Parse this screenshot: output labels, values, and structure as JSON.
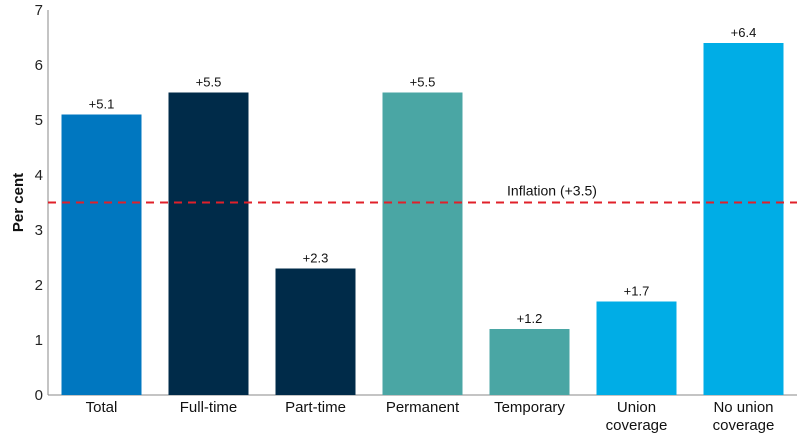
{
  "chart_data": {
    "type": "bar",
    "ylabel": "Per cent",
    "xlabel": "",
    "title": "",
    "ylim": [
      0,
      7
    ],
    "yticks": [
      "0",
      "1",
      "2",
      "3",
      "4",
      "5",
      "6",
      "7"
    ],
    "grid": false,
    "categories": [
      [
        "Total"
      ],
      [
        "Full-time"
      ],
      [
        "Part-time"
      ],
      [
        "Permanent"
      ],
      [
        "Temporary"
      ],
      [
        "Union",
        "coverage"
      ],
      [
        "No union",
        "coverage"
      ]
    ],
    "values": [
      5.1,
      5.5,
      2.3,
      5.5,
      1.2,
      1.7,
      6.4
    ],
    "data_labels": [
      "+5.1",
      "+5.5",
      "+2.3",
      "+5.5",
      "+1.2",
      "+1.7",
      "+6.4"
    ],
    "colors": [
      "#0077c0",
      "#002b49",
      "#002b49",
      "#4aa6a4",
      "#4aa6a4",
      "#00ade6",
      "#00ade6"
    ],
    "reference_line": {
      "value": 3.5,
      "label": "Inflation (+3.5)",
      "color": "#e0202a"
    }
  }
}
